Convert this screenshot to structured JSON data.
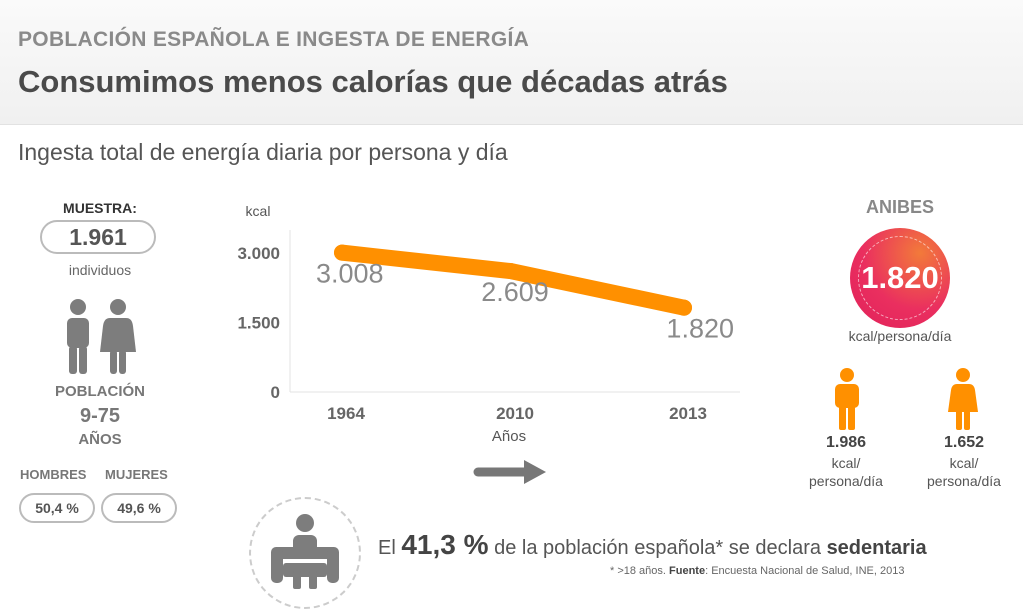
{
  "header": {
    "kicker": "POBLACIÓN ESPAÑOLA E INGESTA DE ENERGÍA",
    "headline": "Consumimos menos calorías que décadas atrás"
  },
  "subtitle": "Ingesta total de energía diaria por persona y día",
  "sample": {
    "label": "MUESTRA:",
    "value": "1.961",
    "unit": "individuos"
  },
  "population": {
    "label": "POBLACIÓN",
    "age_range": "9-75",
    "age_unit": "AÑOS",
    "men_label": "HOMBRES",
    "women_label": "MUJERES",
    "men_pct": "50,4 %",
    "women_pct": "49,6 %"
  },
  "chart_data": {
    "type": "line",
    "x": [
      "1964",
      "2010",
      "2013"
    ],
    "series": [
      {
        "values": [
          3008,
          2609,
          1820
        ],
        "labels": [
          "3.008",
          "2.609",
          "1.820"
        ]
      }
    ],
    "ylabel": "kcal",
    "xlabel": "Años",
    "ylim": [
      0,
      3000
    ],
    "yticks": [
      0,
      1500,
      3000
    ],
    "ytick_labels": [
      "0",
      "1.500",
      "3.000"
    ],
    "grid": false,
    "line_color": "#ff9000"
  },
  "anibes": {
    "title": "ANIBES",
    "value": "1.820",
    "unit": "kcal/persona/día",
    "men_value": "1.986",
    "women_value": "1.652",
    "gender_unit_line1": "kcal/",
    "gender_unit_line2": "persona/día",
    "accent": "#ff9000",
    "circle_color": "#e8285c"
  },
  "sedentary": {
    "prefix": "El",
    "pct": "41,3 %",
    "middle": "de la población española* se declara",
    "keyword": "sedentaria"
  },
  "note": {
    "prefix": "* >18 años.",
    "source_label": "Fuente",
    "source_text": ": Encuesta Nacional de Salud, INE, 2013"
  },
  "icons": {
    "people": "man-woman-icon",
    "anibes_man": "man-icon",
    "anibes_woman": "woman-icon",
    "arrow": "arrow-right-icon",
    "sitting": "person-sitting-armchair-icon"
  }
}
